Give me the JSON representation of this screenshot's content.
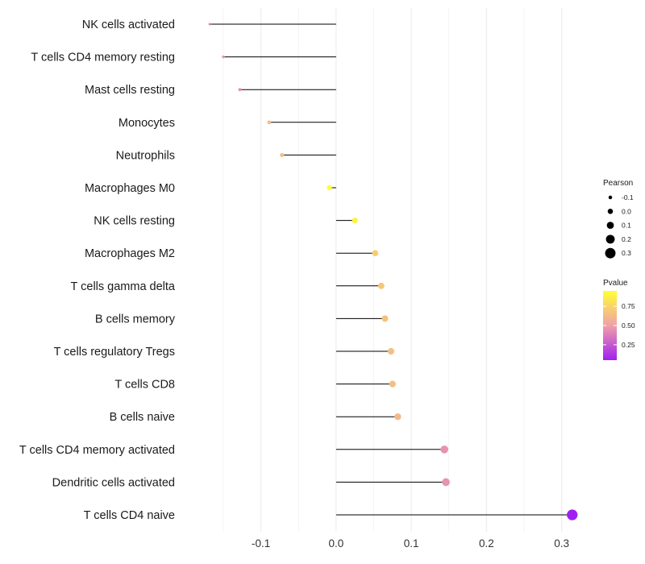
{
  "chart_data": {
    "type": "lollipop",
    "title": "",
    "xlabel": "",
    "ylabel": "",
    "xlim": [
      -0.195,
      0.325
    ],
    "x_ticks": [
      -0.1,
      0.0,
      0.1,
      0.2,
      0.3
    ],
    "x_tick_labels": [
      "-0.1",
      "0.0",
      "0.1",
      "0.2",
      "0.3"
    ],
    "baseline": 0.0,
    "categories": [
      "NK cells activated",
      "T cells CD4 memory resting",
      "Mast cells resting",
      "Monocytes",
      "Neutrophils",
      "Macrophages M0",
      "NK cells resting",
      "Macrophages M2",
      "T cells gamma delta",
      "B cells memory",
      "T cells regulatory  Tregs ",
      "T cells CD8",
      "B cells naive",
      "T cells CD4 memory activated",
      "Dendritic cells activated",
      "T cells CD4 naive"
    ],
    "pearson": [
      -0.168,
      -0.15,
      -0.128,
      -0.089,
      -0.072,
      -0.009,
      0.025,
      0.052,
      0.06,
      0.065,
      0.073,
      0.075,
      0.082,
      0.144,
      0.146,
      0.314
    ],
    "pvalue": [
      0.4,
      0.45,
      0.45,
      0.62,
      0.65,
      0.97,
      0.9,
      0.72,
      0.68,
      0.66,
      0.64,
      0.64,
      0.62,
      0.45,
      0.45,
      0.05
    ],
    "size_legend": {
      "title": "Pearson",
      "values": [
        -0.1,
        0.0,
        0.1,
        0.2,
        0.3
      ],
      "labels": [
        "-0.1",
        "0.0",
        "0.1",
        "0.2",
        "0.3"
      ]
    },
    "color_legend": {
      "title": "Pvalue",
      "range": [
        0.05,
        0.95
      ],
      "ticks": [
        0.75,
        0.5,
        0.25
      ],
      "tick_labels": [
        "0.75",
        "0.50",
        "0.25"
      ],
      "low_color": "#a020f0",
      "mid_color": "#f0a0a8",
      "high_color": "#ffff33"
    },
    "legend_position": "right"
  },
  "colors": {
    "segment": "#000000",
    "grid": "#ececec"
  }
}
